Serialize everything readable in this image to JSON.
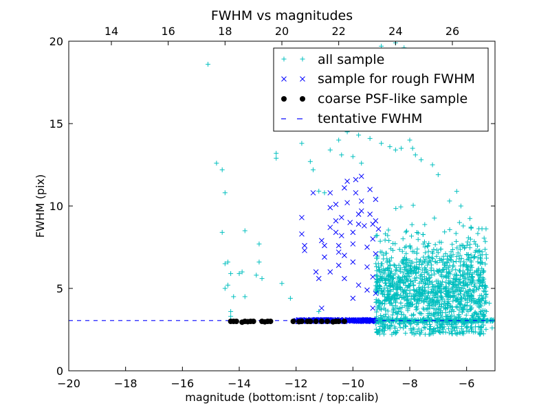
{
  "chart_data": {
    "type": "scatter",
    "title": "FWHM vs magnitudes",
    "xlabel": "magnitude (bottom:isnt / top:calib)",
    "ylabel": "FWHM (pix)",
    "xlim": [
      -20,
      -5
    ],
    "ylim": [
      0,
      20
    ],
    "x_ticks": [
      -20,
      -18,
      -16,
      -14,
      -12,
      -10,
      -8,
      -6
    ],
    "x_tick_labels": [
      "−20",
      "−18",
      "−16",
      "−14",
      "−12",
      "−10",
      "−8",
      "−6"
    ],
    "y_ticks": [
      0,
      5,
      10,
      15,
      20
    ],
    "y_tick_labels": [
      "0",
      "5",
      "10",
      "15",
      "20"
    ],
    "top_axis": {
      "label_shift": 32.5,
      "ticks": [
        14,
        16,
        18,
        20,
        22,
        24,
        26
      ],
      "tick_labels": [
        "14",
        "16",
        "18",
        "20",
        "22",
        "24",
        "26"
      ]
    },
    "legend_position": "top-right",
    "grid": false,
    "series": [
      {
        "name": "all sample",
        "marker": "+",
        "color": "#00bfbf",
        "points": [
          [
            -15.1,
            18.6
          ],
          [
            -14.8,
            12.6
          ],
          [
            -14.6,
            12.2
          ],
          [
            -14.5,
            10.8
          ],
          [
            -14.6,
            8.4
          ],
          [
            -14.4,
            6.6
          ],
          [
            -14.5,
            6.5
          ],
          [
            -14.3,
            5.9
          ],
          [
            -14.4,
            5.2
          ],
          [
            -14.5,
            5.0
          ],
          [
            -14.2,
            4.5
          ],
          [
            -14.3,
            3.6
          ],
          [
            -14.3,
            3.3
          ],
          [
            -14.0,
            5.9
          ],
          [
            -13.8,
            8.5
          ],
          [
            -13.9,
            6.0
          ],
          [
            -13.8,
            4.5
          ],
          [
            -13.4,
            5.8
          ],
          [
            -13.3,
            7.7
          ],
          [
            -13.3,
            6.6
          ],
          [
            -13.2,
            5.6
          ],
          [
            -12.7,
            13.2
          ],
          [
            -12.7,
            12.9
          ],
          [
            -12.5,
            5.3
          ],
          [
            -12.2,
            4.4
          ],
          [
            -11.8,
            13.8
          ],
          [
            -11.5,
            12.7
          ],
          [
            -11.4,
            12.2
          ],
          [
            -11.2,
            10.9
          ],
          [
            -11.0,
            10.8
          ],
          [
            -11.2,
            3.6
          ],
          [
            -10.8,
            13.4
          ],
          [
            -10.5,
            14.0
          ],
          [
            -10.4,
            13.1
          ],
          [
            -10.2,
            14.5
          ],
          [
            -10.0,
            13.0
          ],
          [
            -9.8,
            14.3
          ],
          [
            -9.7,
            12.6
          ],
          [
            -9.4,
            14.1
          ],
          [
            -9.0,
            13.8
          ],
          [
            -8.7,
            13.6
          ],
          [
            -8.5,
            13.4
          ],
          [
            -8.3,
            13.5
          ],
          [
            -8.0,
            14.0
          ],
          [
            -7.9,
            13.5
          ],
          [
            -7.8,
            13.1
          ],
          [
            -7.6,
            12.8
          ],
          [
            -7.2,
            12.5
          ],
          [
            -7.0,
            11.9
          ],
          [
            -6.6,
            10.3
          ],
          [
            -6.2,
            10.0
          ],
          [
            -5.6,
            3.3
          ],
          [
            -5.3,
            3.6
          ],
          [
            -5.2,
            4.1
          ],
          [
            -5.1,
            3.0
          ],
          [
            -5.1,
            2.6
          ],
          [
            -9.0,
            19.7
          ],
          [
            -8.5,
            19.9
          ],
          [
            -8.2,
            19.6
          ]
        ]
      },
      {
        "name": "sample for rough FWHM",
        "marker": "x",
        "color": "#0000ff",
        "points": [
          [
            -11.8,
            9.3
          ],
          [
            -11.8,
            8.3
          ],
          [
            -11.7,
            7.6
          ],
          [
            -11.7,
            7.3
          ],
          [
            -11.4,
            10.8
          ],
          [
            -11.3,
            6.0
          ],
          [
            -11.2,
            5.6
          ],
          [
            -11.1,
            7.9
          ],
          [
            -11.0,
            7.6
          ],
          [
            -11.0,
            6.9
          ],
          [
            -11.1,
            3.8
          ],
          [
            -10.8,
            10.8
          ],
          [
            -10.8,
            9.9
          ],
          [
            -10.8,
            8.7
          ],
          [
            -10.8,
            6.0
          ],
          [
            -10.6,
            10.1
          ],
          [
            -10.6,
            9.1
          ],
          [
            -10.6,
            8.4
          ],
          [
            -10.5,
            7.6
          ],
          [
            -10.5,
            7.2
          ],
          [
            -10.5,
            6.4
          ],
          [
            -10.4,
            9.3
          ],
          [
            -10.4,
            8.2
          ],
          [
            -10.3,
            11.1
          ],
          [
            -10.3,
            7.0
          ],
          [
            -10.3,
            5.6
          ],
          [
            -10.2,
            11.5
          ],
          [
            -10.2,
            10.2
          ],
          [
            -10.1,
            9.0
          ],
          [
            -10.0,
            8.4
          ],
          [
            -10.0,
            7.7
          ],
          [
            -10.0,
            6.6
          ],
          [
            -10.0,
            4.4
          ],
          [
            -9.9,
            11.6
          ],
          [
            -9.9,
            10.8
          ],
          [
            -9.8,
            9.5
          ],
          [
            -9.8,
            8.9
          ],
          [
            -9.8,
            5.2
          ],
          [
            -9.7,
            11.8
          ],
          [
            -9.7,
            10.3
          ],
          [
            -9.7,
            9.7
          ],
          [
            -9.6,
            8.8
          ],
          [
            -9.5,
            7.5
          ],
          [
            -9.5,
            6.3
          ],
          [
            -9.5,
            4.9
          ],
          [
            -9.4,
            11.0
          ],
          [
            -9.4,
            9.5
          ],
          [
            -9.3,
            8.9
          ],
          [
            -9.3,
            8.0
          ],
          [
            -9.3,
            5.7
          ],
          [
            -9.3,
            3.8
          ],
          [
            -9.2,
            10.4
          ],
          [
            -9.2,
            9.1
          ],
          [
            -9.2,
            7.1
          ],
          [
            -9.2,
            4.7
          ],
          [
            -9.1,
            8.6
          ]
        ]
      },
      {
        "name": "coarse PSF-like sample",
        "marker": "o",
        "color": "#000000",
        "points": [
          [
            -14.3,
            3.0
          ],
          [
            -14.2,
            3.0
          ],
          [
            -14.1,
            3.0
          ],
          [
            -13.9,
            2.95
          ],
          [
            -13.8,
            3.0
          ],
          [
            -13.7,
            2.98
          ],
          [
            -13.6,
            3.0
          ],
          [
            -13.5,
            3.0
          ],
          [
            -13.2,
            3.0
          ],
          [
            -13.1,
            2.97
          ],
          [
            -13.0,
            3.0
          ],
          [
            -12.9,
            3.0
          ],
          [
            -12.1,
            3.0
          ],
          [
            -11.9,
            2.98
          ],
          [
            -11.8,
            3.0
          ],
          [
            -11.6,
            3.0
          ],
          [
            -11.5,
            3.0
          ],
          [
            -11.3,
            3.0
          ],
          [
            -11.1,
            3.0
          ],
          [
            -10.9,
            3.0
          ],
          [
            -10.7,
            2.97
          ],
          [
            -10.6,
            3.0
          ],
          [
            -10.5,
            3.0
          ],
          [
            -10.3,
            3.0
          ]
        ]
      },
      {
        "name": "tentative FWHM",
        "marker": "dashed-line",
        "color": "#0000ff",
        "y": 3.05
      }
    ],
    "dense_clusters": [
      {
        "series": 0,
        "count": 1400,
        "x_range": [
          -9.2,
          -5.3
        ],
        "y_mean": 4.8,
        "y_sd": 1.6,
        "y_min": 2.2,
        "y_max": 12.0
      },
      {
        "series": 1,
        "count": 200,
        "x_range": [
          -12.0,
          -9.2
        ],
        "y_value": 3.05
      },
      {
        "series": 0,
        "count": 220,
        "x_range": [
          -9.2,
          -5.0
        ],
        "y_value": 3.05
      }
    ]
  }
}
